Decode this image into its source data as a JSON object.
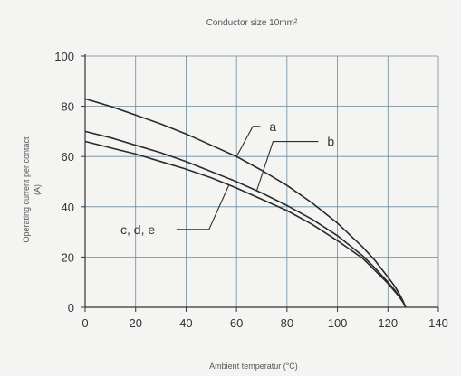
{
  "chart_data": {
    "type": "line",
    "title": "Conductor size 10mm²",
    "xlabel": "Ambient temperatur (°C)",
    "ylabel_line1": "Operating current per contact",
    "ylabel_line2": "(A)",
    "xlim": [
      0,
      140
    ],
    "ylim": [
      0,
      100
    ],
    "xticks": [
      0,
      20,
      40,
      60,
      80,
      100,
      120,
      140
    ],
    "yticks": [
      0,
      20,
      40,
      60,
      80,
      100
    ],
    "grid": true,
    "series": [
      {
        "name": "a",
        "x": [
          0,
          10,
          20,
          30,
          40,
          50,
          60,
          70,
          80,
          90,
          100,
          110,
          115,
          120,
          123,
          125,
          126,
          127
        ],
        "y": [
          83,
          80,
          76.5,
          73,
          69,
          64.5,
          60,
          54.5,
          48.5,
          41.5,
          33.5,
          24,
          18.5,
          12,
          8,
          4.5,
          2.5,
          0
        ]
      },
      {
        "name": "b",
        "x": [
          0,
          10,
          20,
          30,
          40,
          50,
          60,
          70,
          80,
          90,
          100,
          110,
          115,
          120,
          123,
          125,
          126,
          127
        ],
        "y": [
          70,
          67.5,
          64.5,
          61.5,
          58,
          54,
          50,
          45.5,
          40.5,
          35,
          28.5,
          20.5,
          15.5,
          10,
          6.5,
          3.5,
          2,
          0
        ]
      },
      {
        "name": "c, d, e",
        "x": [
          0,
          10,
          20,
          30,
          40,
          50,
          60,
          70,
          80,
          90,
          100,
          110,
          115,
          120,
          123,
          125,
          126,
          127
        ],
        "y": [
          66,
          63.5,
          61,
          58,
          55,
          51.5,
          47.5,
          43,
          38.5,
          33,
          26.5,
          19.5,
          14.5,
          9.5,
          6,
          3.5,
          2,
          0
        ]
      }
    ],
    "annotations": [
      {
        "label": "a",
        "series": "a",
        "anchor_x": 60,
        "label_x": 73,
        "label_y": 72
      },
      {
        "label": "b",
        "series": "b",
        "anchor_x": 68,
        "label_x": 96,
        "label_y": 66
      },
      {
        "label": "c, d, e",
        "series": "c, d, e",
        "anchor_x": 57,
        "label_x": 14,
        "label_y": 31
      }
    ],
    "colors": {
      "line": "#2b2b2b",
      "grid": "#6e8a9a",
      "text": "#333333"
    }
  }
}
